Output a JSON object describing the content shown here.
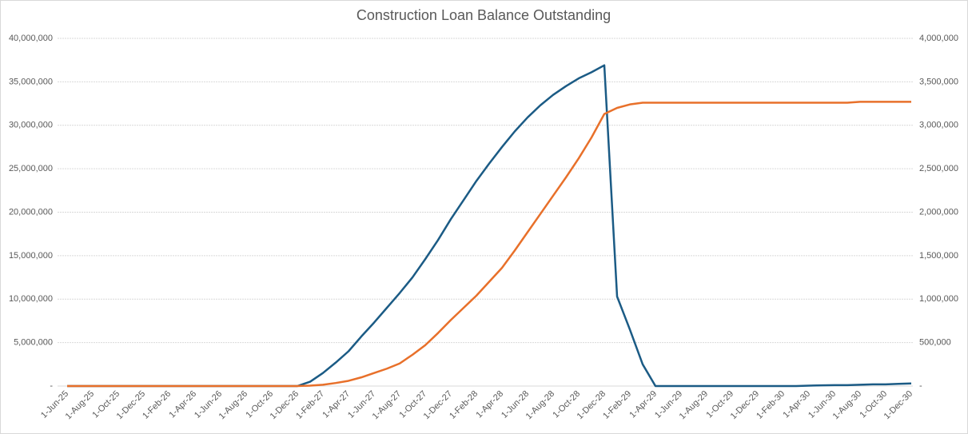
{
  "chart_data": {
    "type": "line",
    "title": "Construction Loan Balance Outstanding",
    "categories": [
      "1-Jun-25",
      null,
      "1-Aug-25",
      null,
      "1-Oct-25",
      null,
      "1-Dec-25",
      null,
      "1-Feb-26",
      null,
      "1-Apr-26",
      null,
      "1-Jun-26",
      null,
      "1-Aug-26",
      null,
      "1-Oct-26",
      null,
      "1-Dec-26",
      null,
      "1-Feb-27",
      null,
      "1-Apr-27",
      null,
      "1-Jun-27",
      null,
      "1-Aug-27",
      null,
      "1-Oct-27",
      null,
      "1-Dec-27",
      null,
      "1-Feb-28",
      null,
      "1-Apr-28",
      null,
      "1-Jun-28",
      null,
      "1-Aug-28",
      null,
      "1-Oct-28",
      null,
      "1-Dec-28",
      null,
      "1-Feb-29",
      null,
      "1-Apr-29",
      null,
      "1-Jun-29",
      null,
      "1-Aug-29",
      null,
      "1-Oct-29",
      null,
      "1-Dec-29",
      null,
      "1-Feb-30",
      null,
      "1-Apr-30",
      null,
      "1-Jun-30",
      null,
      "1-Aug-30",
      null,
      "1-Oct-30",
      null,
      "1-Dec-30"
    ],
    "series": [
      {
        "color": "#1b5b85",
        "axis": "y",
        "values": [
          0,
          0,
          0,
          0,
          0,
          0,
          0,
          0,
          0,
          0,
          0,
          0,
          0,
          0,
          0,
          0,
          0,
          0,
          0,
          500000,
          1500000,
          2700000,
          4000000,
          5700000,
          7300000,
          9000000,
          10700000,
          12500000,
          14600000,
          16800000,
          19200000,
          21400000,
          23600000,
          25600000,
          27500000,
          29300000,
          30900000,
          32300000,
          33500000,
          34500000,
          35400000,
          36100000,
          36900000,
          10300000,
          6500000,
          2500000,
          0,
          0,
          0,
          0,
          0,
          0,
          0,
          0,
          0,
          0,
          0,
          0,
          50000,
          80000,
          100000,
          100000,
          150000,
          200000,
          200000,
          250000,
          300000
        ]
      },
      {
        "color": "#e8702a",
        "axis": "y2",
        "values": [
          0,
          0,
          0,
          0,
          0,
          0,
          0,
          0,
          0,
          0,
          0,
          0,
          0,
          0,
          0,
          0,
          0,
          0,
          0,
          5000,
          15000,
          35000,
          60000,
          100000,
          150000,
          200000,
          260000,
          360000,
          470000,
          610000,
          760000,
          900000,
          1040000,
          1200000,
          1360000,
          1560000,
          1770000,
          1980000,
          2190000,
          2400000,
          2620000,
          2860000,
          3130000,
          3200000,
          3240000,
          3260000,
          3260000,
          3260000,
          3260000,
          3260000,
          3260000,
          3260000,
          3260000,
          3260000,
          3260000,
          3260000,
          3260000,
          3260000,
          3260000,
          3260000,
          3260000,
          3260000,
          3270000,
          3270000,
          3270000,
          3270000,
          3270000
        ]
      }
    ],
    "ylim": [
      0,
      40000000
    ],
    "yticks": [
      {
        "value": 0,
        "label": "-"
      },
      {
        "value": 5000000,
        "label": "5,000,000"
      },
      {
        "value": 10000000,
        "label": "10,000,000"
      },
      {
        "value": 15000000,
        "label": "15,000,000"
      },
      {
        "value": 20000000,
        "label": "20,000,000"
      },
      {
        "value": 25000000,
        "label": "25,000,000"
      },
      {
        "value": 30000000,
        "label": "30,000,000"
      },
      {
        "value": 35000000,
        "label": "35,000,000"
      },
      {
        "value": 40000000,
        "label": "40,000,000"
      }
    ],
    "y2lim": [
      0,
      4000000
    ],
    "y2ticks": [
      {
        "value": 0,
        "label": "-"
      },
      {
        "value": 500000,
        "label": "500,000"
      },
      {
        "value": 1000000,
        "label": "1,000,000"
      },
      {
        "value": 1500000,
        "label": "1,500,000"
      },
      {
        "value": 2000000,
        "label": "2,000,000"
      },
      {
        "value": 2500000,
        "label": "2,500,000"
      },
      {
        "value": 3000000,
        "label": "3,000,000"
      },
      {
        "value": 3500000,
        "label": "3,500,000"
      },
      {
        "value": 4000000,
        "label": "4,000,000"
      }
    ],
    "grid": true
  }
}
